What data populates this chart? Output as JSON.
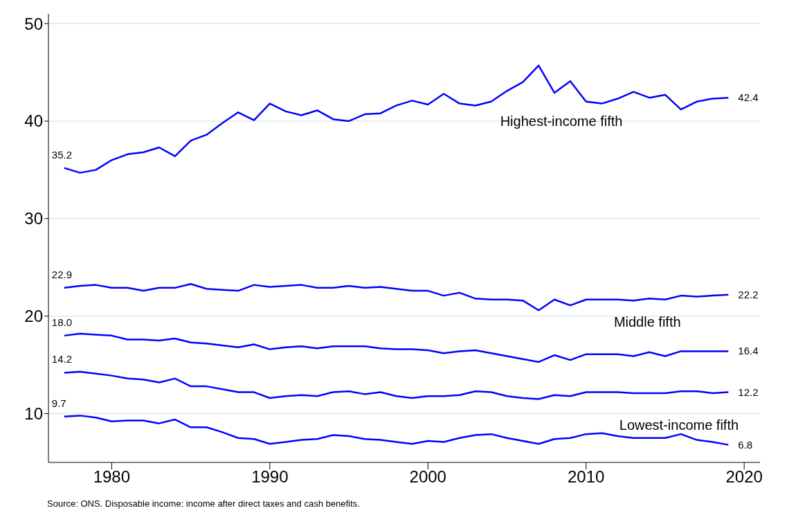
{
  "chart_data": {
    "type": "line",
    "x": [
      1977,
      1978,
      1979,
      1980,
      1981,
      1982,
      1983,
      1984,
      1985,
      1986,
      1987,
      1988,
      1989,
      1990,
      1991,
      1992,
      1993,
      1994,
      1995,
      1996,
      1997,
      1998,
      1999,
      2000,
      2001,
      2002,
      2003,
      2004,
      2005,
      2006,
      2007,
      2008,
      2009,
      2010,
      2011,
      2012,
      2013,
      2014,
      2015,
      2016,
      2017,
      2018,
      2019
    ],
    "series": [
      {
        "name": "Highest-income fifth",
        "color": "#0000ff",
        "values": [
          35.2,
          34.7,
          35.0,
          36.0,
          36.6,
          36.8,
          37.3,
          36.4,
          38.0,
          38.6,
          39.8,
          40.9,
          40.1,
          41.8,
          41.0,
          40.6,
          41.1,
          40.2,
          40.0,
          40.7,
          40.8,
          41.6,
          42.1,
          41.7,
          42.8,
          41.8,
          41.6,
          42.0,
          43.1,
          44.0,
          45.7,
          42.9,
          44.1,
          42.0,
          41.8,
          42.3,
          43.0,
          42.4,
          42.7,
          41.2,
          42.0,
          42.3,
          42.4
        ],
        "value_labels": [
          "35.2",
          null,
          null,
          null,
          null,
          null,
          null,
          null,
          null,
          null,
          null,
          null,
          null,
          null,
          null,
          null,
          null,
          null,
          null,
          null,
          null,
          null,
          null,
          null,
          null,
          null,
          null,
          null,
          null,
          null,
          null,
          null,
          null,
          null,
          null,
          null,
          null,
          null,
          null,
          null,
          null,
          null,
          "42.4"
        ]
      },
      {
        "color": "#0000ff",
        "values": [
          22.9,
          23.1,
          23.2,
          22.9,
          22.9,
          22.6,
          22.9,
          22.9,
          23.3,
          22.8,
          22.7,
          22.6,
          23.2,
          23.0,
          23.1,
          23.2,
          22.9,
          22.9,
          23.1,
          22.9,
          23.0,
          22.8,
          22.6,
          22.6,
          22.1,
          22.4,
          21.8,
          21.7,
          21.7,
          21.6,
          20.6,
          21.7,
          21.1,
          21.7,
          21.7,
          21.7,
          21.6,
          21.8,
          21.7,
          22.1,
          22.0,
          22.1,
          22.2
        ],
        "value_labels": [
          "22.9",
          null,
          null,
          null,
          null,
          null,
          null,
          null,
          null,
          null,
          null,
          null,
          null,
          null,
          null,
          null,
          null,
          null,
          null,
          null,
          null,
          null,
          null,
          null,
          null,
          null,
          null,
          null,
          null,
          null,
          null,
          null,
          null,
          null,
          null,
          null,
          null,
          null,
          null,
          null,
          null,
          null,
          "22.2"
        ]
      },
      {
        "name": "Middle fifth",
        "color": "#0000ff",
        "values": [
          18.0,
          18.2,
          18.1,
          18.0,
          17.6,
          17.6,
          17.5,
          17.7,
          17.3,
          17.2,
          17.0,
          16.8,
          17.1,
          16.6,
          16.8,
          16.9,
          16.7,
          16.9,
          16.9,
          16.9,
          16.7,
          16.6,
          16.6,
          16.5,
          16.2,
          16.4,
          16.5,
          16.2,
          15.9,
          15.6,
          15.3,
          16.0,
          15.5,
          16.1,
          16.1,
          16.1,
          15.9,
          16.3,
          15.9,
          16.4,
          16.4,
          16.4,
          16.4
        ],
        "value_labels": [
          "18.0",
          null,
          null,
          null,
          null,
          null,
          null,
          null,
          null,
          null,
          null,
          null,
          null,
          null,
          null,
          null,
          null,
          null,
          null,
          null,
          null,
          null,
          null,
          null,
          null,
          null,
          null,
          null,
          null,
          null,
          null,
          null,
          null,
          null,
          null,
          null,
          null,
          null,
          null,
          null,
          null,
          null,
          "16.4"
        ]
      },
      {
        "color": "#0000ff",
        "values": [
          14.2,
          14.3,
          14.1,
          13.9,
          13.6,
          13.5,
          13.2,
          13.6,
          12.8,
          12.8,
          12.5,
          12.2,
          12.2,
          11.6,
          11.8,
          11.9,
          11.8,
          12.2,
          12.3,
          12.0,
          12.2,
          11.8,
          11.6,
          11.8,
          11.8,
          11.9,
          12.3,
          12.2,
          11.8,
          11.6,
          11.5,
          11.9,
          11.8,
          12.2,
          12.2,
          12.2,
          12.1,
          12.1,
          12.1,
          12.3,
          12.3,
          12.1,
          12.2
        ],
        "value_labels": [
          "14.2",
          null,
          null,
          null,
          null,
          null,
          null,
          null,
          null,
          null,
          null,
          null,
          null,
          null,
          null,
          null,
          null,
          null,
          null,
          null,
          null,
          null,
          null,
          null,
          null,
          null,
          null,
          null,
          null,
          null,
          null,
          null,
          null,
          null,
          null,
          null,
          null,
          null,
          null,
          null,
          null,
          null,
          "12.2"
        ]
      },
      {
        "name": "Lowest-income fifth",
        "color": "#0000ff",
        "values": [
          9.7,
          9.8,
          9.6,
          9.2,
          9.3,
          9.3,
          9.0,
          9.4,
          8.6,
          8.6,
          8.1,
          7.5,
          7.4,
          6.9,
          7.1,
          7.3,
          7.4,
          7.8,
          7.7,
          7.4,
          7.3,
          7.1,
          6.9,
          7.2,
          7.1,
          7.5,
          7.8,
          7.9,
          7.5,
          7.2,
          6.9,
          7.4,
          7.5,
          7.9,
          8.0,
          7.7,
          7.5,
          7.5,
          7.5,
          7.9,
          7.3,
          7.1,
          6.8
        ],
        "value_labels": [
          "9.7",
          null,
          null,
          null,
          null,
          null,
          null,
          null,
          null,
          null,
          null,
          null,
          null,
          null,
          null,
          null,
          null,
          null,
          null,
          null,
          null,
          null,
          null,
          null,
          null,
          null,
          null,
          null,
          null,
          null,
          null,
          null,
          null,
          null,
          null,
          null,
          null,
          null,
          null,
          null,
          null,
          null,
          "6.8"
        ]
      }
    ],
    "xlim": [
      1976,
      2021
    ],
    "xticks": [
      1980,
      1990,
      2000,
      2010,
      2020
    ],
    "ylim": [
      5,
      51
    ],
    "yticks": [
      10,
      20,
      30,
      40,
      50
    ],
    "grid": "y",
    "marker": "none",
    "line_style": "solid",
    "annotations": [
      "Source: ONS. Disposable income: income after direct taxes and cash benefits."
    ]
  }
}
